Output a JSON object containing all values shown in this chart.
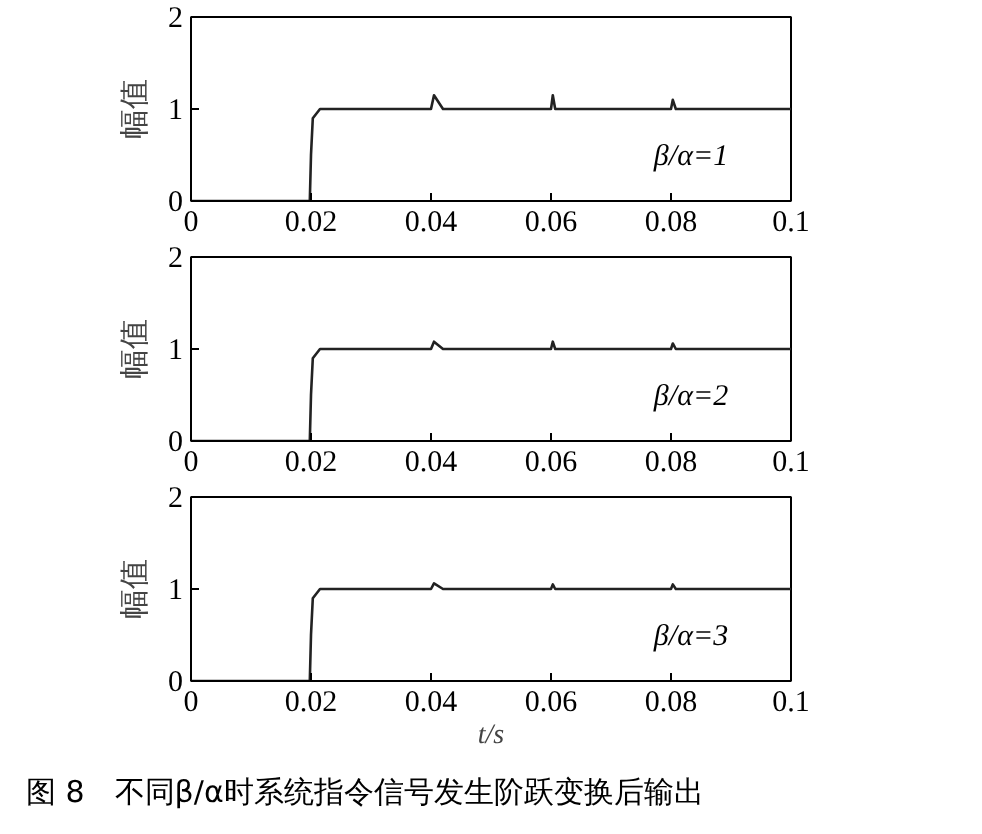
{
  "chart_data": [
    {
      "type": "line",
      "ylabel": "幅值",
      "x": [
        0,
        0.0198,
        0.02,
        0.0203,
        0.0215,
        0.04,
        0.0405,
        0.042,
        0.06,
        0.0603,
        0.0607,
        0.08,
        0.0803,
        0.0808,
        0.1
      ],
      "series": [
        {
          "color": "#222222",
          "values": [
            0,
            0,
            0.5,
            0.9,
            1,
            1,
            1.15,
            1,
            1,
            1.15,
            1,
            1,
            1.1,
            1,
            1
          ]
        }
      ],
      "xlim": [
        0,
        0.1
      ],
      "ylim": [
        0,
        2
      ],
      "xticks": [
        0,
        0.02,
        0.04,
        0.06,
        0.08,
        0.1
      ],
      "yticks": [
        0,
        1,
        2
      ],
      "grid": false,
      "annotations": [
        "β/α=1"
      ]
    },
    {
      "type": "line",
      "ylabel": "幅值",
      "x": [
        0,
        0.0198,
        0.02,
        0.0203,
        0.0215,
        0.04,
        0.0405,
        0.042,
        0.06,
        0.0603,
        0.0607,
        0.08,
        0.0803,
        0.0808,
        0.1
      ],
      "series": [
        {
          "color": "#222222",
          "values": [
            0,
            0,
            0.5,
            0.9,
            1,
            1,
            1.08,
            1,
            1,
            1.08,
            1,
            1,
            1.06,
            1,
            1
          ]
        }
      ],
      "xlim": [
        0,
        0.1
      ],
      "ylim": [
        0,
        2
      ],
      "xticks": [
        0,
        0.02,
        0.04,
        0.06,
        0.08,
        0.1
      ],
      "yticks": [
        0,
        1,
        2
      ],
      "grid": false,
      "annotations": [
        "β/α=2"
      ]
    },
    {
      "type": "line",
      "ylabel": "幅值",
      "xlabel": "t/s",
      "x": [
        0,
        0.0198,
        0.02,
        0.0203,
        0.0215,
        0.04,
        0.0405,
        0.042,
        0.06,
        0.0603,
        0.0607,
        0.08,
        0.0803,
        0.0808,
        0.1
      ],
      "series": [
        {
          "color": "#222222",
          "values": [
            0,
            0,
            0.5,
            0.9,
            1,
            1,
            1.06,
            1,
            1,
            1.05,
            1,
            1,
            1.05,
            1,
            1
          ]
        }
      ],
      "xlim": [
        0,
        0.1
      ],
      "ylim": [
        0,
        2
      ],
      "xticks": [
        0,
        0.02,
        0.04,
        0.06,
        0.08,
        0.1
      ],
      "yticks": [
        0,
        1,
        2
      ],
      "grid": false,
      "annotations": [
        "β/α=3",
        "图 8　不同β/α时系统指令信号发生阶跃变换后输出"
      ]
    }
  ]
}
